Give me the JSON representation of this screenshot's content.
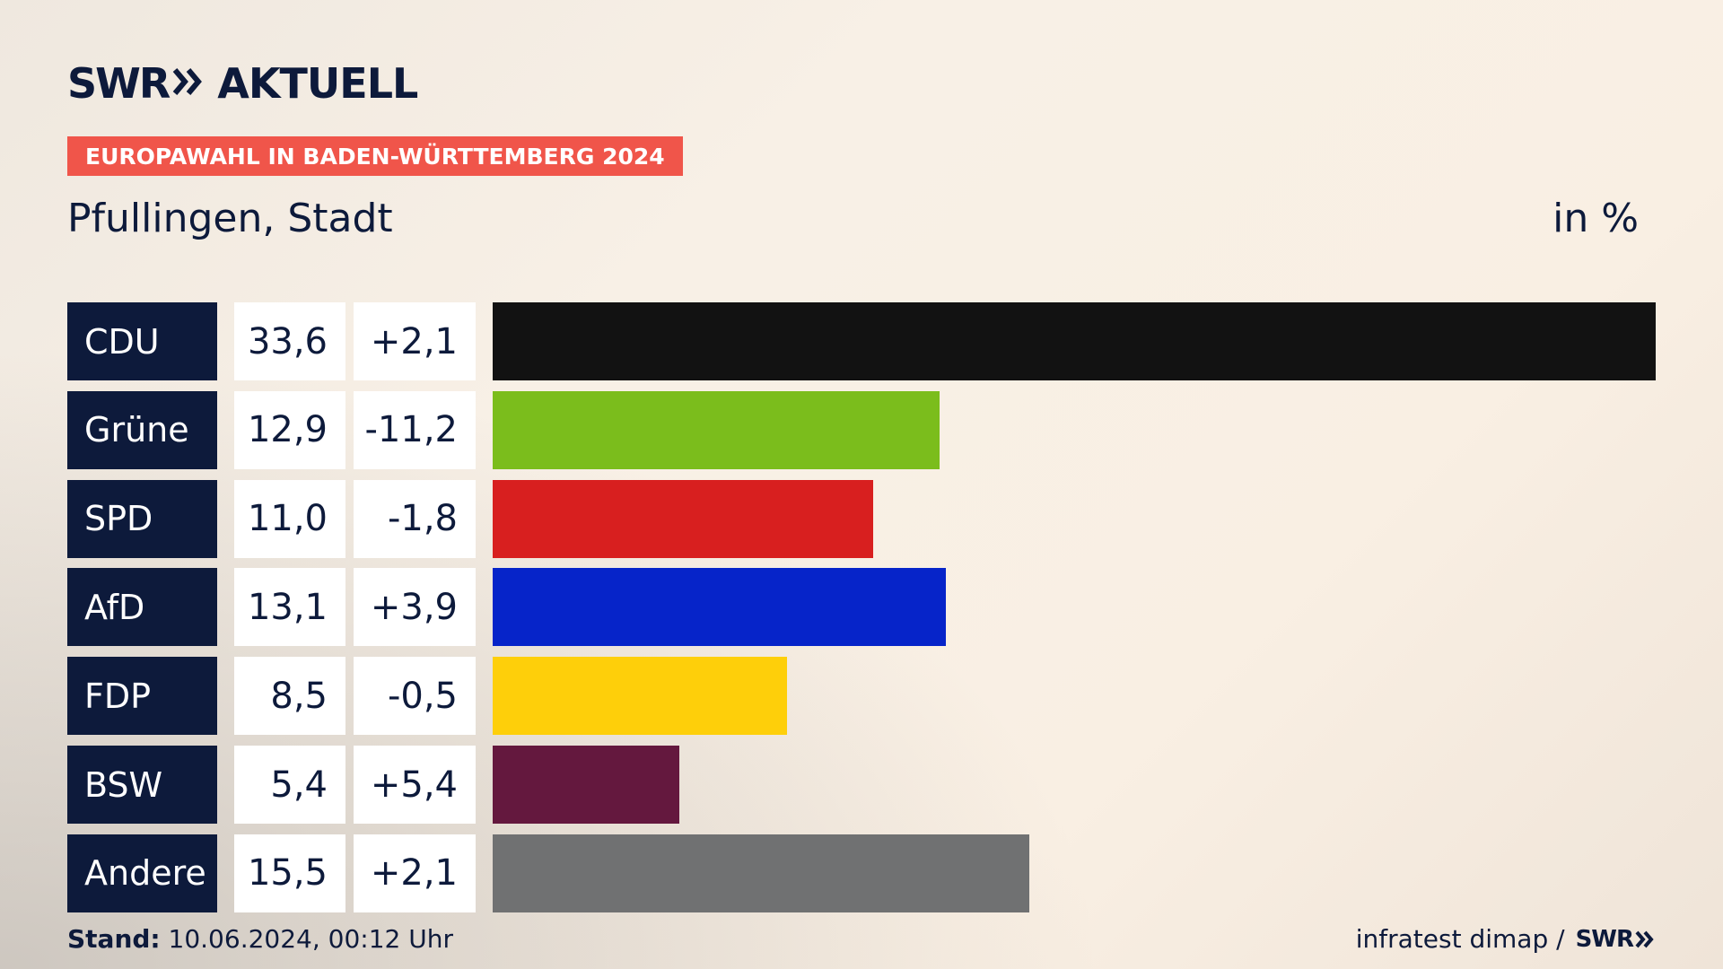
{
  "header": {
    "brand": "SWR",
    "brand_suffix": "AKTUELL",
    "badge": "EUROPAWAHL IN BADEN-WÜRTTEMBERG 2024",
    "region": "Pfullingen, Stadt",
    "unit": "in %"
  },
  "colors": {
    "navy": "#0d1a3b",
    "badge": "#f0554a"
  },
  "chart_data": {
    "type": "bar",
    "orientation": "horizontal",
    "categories": [
      "CDU",
      "Grüne",
      "SPD",
      "AfD",
      "FDP",
      "BSW",
      "Andere"
    ],
    "values": [
      33.6,
      12.9,
      11.0,
      13.1,
      8.5,
      5.4,
      15.5
    ],
    "value_labels": [
      "33,6",
      "12,9",
      "11,0",
      "13,1",
      "8,5",
      "5,4",
      "15,5"
    ],
    "change_labels": [
      "+2,1",
      "-11,2",
      "-1,8",
      "+3,9",
      "-0,5",
      "+5,4",
      "+2,1"
    ],
    "changes": [
      2.1,
      -11.2,
      -1.8,
      3.9,
      -0.5,
      5.4,
      2.1
    ],
    "bar_colors": [
      "#121212",
      "#7bbd1c",
      "#d81f1f",
      "#0624c9",
      "#fecf0a",
      "#64183e",
      "#707172"
    ],
    "title": "Pfullingen, Stadt",
    "ylabel": "in %",
    "xlim": [
      0,
      33.6
    ],
    "grid": false
  },
  "footer": {
    "stand_label": "Stand:",
    "stand_value": "10.06.2024, 00:12 Uhr",
    "source": "infratest dimap /",
    "source_brand": "SWR"
  }
}
